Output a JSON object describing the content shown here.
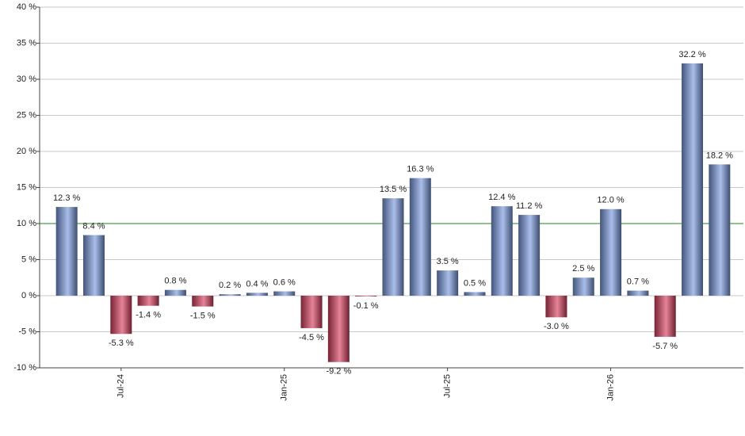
{
  "chart_data": {
    "type": "bar",
    "categories": [
      null,
      null,
      "Jul-24",
      null,
      null,
      null,
      null,
      null,
      "Jan-25",
      null,
      null,
      null,
      null,
      null,
      "Jul-25",
      null,
      null,
      null,
      null,
      null,
      "Jan-26",
      null,
      null,
      null,
      null
    ],
    "values": [
      12.3,
      8.4,
      -5.3,
      -1.4,
      0.8,
      -1.5,
      0.2,
      0.4,
      0.6,
      -4.5,
      -9.2,
      -0.1,
      13.5,
      16.3,
      3.5,
      0.5,
      12.4,
      11.2,
      -3.0,
      2.5,
      12.0,
      0.7,
      -5.7,
      32.2,
      18.2
    ],
    "value_labels": [
      "12.3 %",
      "8.4 %",
      "-5.3 %",
      "-1.4 %",
      "0.8 %",
      "-1.5 %",
      "0.2 %",
      "0.4 %",
      "0.6 %",
      "-4.5 %",
      "-9.2 %",
      "-0.1 %",
      "13.5 %",
      "16.3 %",
      "3.5 %",
      "0.5 %",
      "12.4 %",
      "11.2 %",
      "-3.0 %",
      "2.5 %",
      "12.0 %",
      "0.7 %",
      "-5.7 %",
      "32.2 %",
      "18.2 %"
    ],
    "positive_color": "#7b9be0",
    "negative_color": "#d94060",
    "ylim": [
      -10,
      40
    ],
    "yticks": [
      {
        "value": -10,
        "label": "-10 %"
      },
      {
        "value": -5,
        "label": "-5 %"
      },
      {
        "value": 0,
        "label": "0 %"
      },
      {
        "value": 5,
        "label": "5 %"
      },
      {
        "value": 10,
        "label": "10 %"
      },
      {
        "value": 15,
        "label": "15 %"
      },
      {
        "value": 20,
        "label": "20 %"
      },
      {
        "value": 25,
        "label": "25 %"
      },
      {
        "value": 30,
        "label": "30 %"
      },
      {
        "value": 35,
        "label": "35 %"
      },
      {
        "value": 40,
        "label": "40 %"
      }
    ],
    "grid": true,
    "reference_line": {
      "value": 10,
      "color": "#1a8a1a"
    }
  }
}
